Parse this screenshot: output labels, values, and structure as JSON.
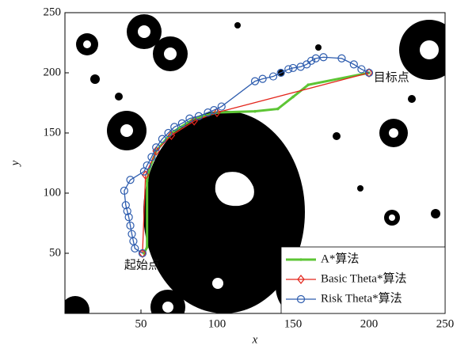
{
  "chart_data": {
    "type": "line",
    "xlabel": "x",
    "ylabel": "y",
    "xlim": [
      0,
      250
    ],
    "ylim": [
      0,
      250
    ],
    "xticks": [
      50,
      100,
      150,
      200,
      250
    ],
    "yticks": [
      50,
      100,
      150,
      200,
      250
    ],
    "legend": "lower right",
    "annotations": [
      {
        "text": "目标点",
        "x": 203,
        "y": 196
      },
      {
        "text": "起始点",
        "x": 39,
        "y": 40
      }
    ],
    "series": [
      {
        "name": "A*算法",
        "color": "#5dc535",
        "marker": "dot",
        "x": [
          52,
          54,
          54,
          55,
          60,
          70,
          85,
          100,
          125,
          140,
          150,
          160,
          200
        ],
        "values": [
          50,
          55,
          110,
          118,
          135,
          150,
          162,
          167,
          168,
          170,
          180,
          190,
          200
        ]
      },
      {
        "name": "Basic Theta*算法",
        "color": "#e3261c",
        "marker": "diamond",
        "x": [
          51,
          53,
          60,
          70,
          85,
          100,
          200
        ],
        "values": [
          50,
          115,
          135,
          148,
          160,
          167,
          200
        ]
      },
      {
        "name": "Risk Theta*算法",
        "color": "#2d5cae",
        "marker": "circle",
        "x": [
          51,
          46,
          45,
          44,
          43,
          42,
          41,
          40,
          39,
          43,
          52,
          54,
          57,
          60,
          64,
          68,
          72,
          77,
          82,
          88,
          94,
          98,
          103,
          125,
          130,
          137,
          142,
          147,
          150,
          155,
          159,
          162,
          165,
          170,
          182,
          190,
          195,
          200
        ],
        "values": [
          50,
          54,
          60,
          66,
          73,
          80,
          85,
          90,
          102,
          111,
          118,
          123,
          130,
          138,
          145,
          150,
          155,
          158,
          162,
          164,
          167,
          169,
          172,
          193,
          195,
          197,
          200,
          203,
          204,
          205,
          207,
          210,
          212,
          213,
          212,
          207,
          203,
          200
        ]
      }
    ]
  }
}
